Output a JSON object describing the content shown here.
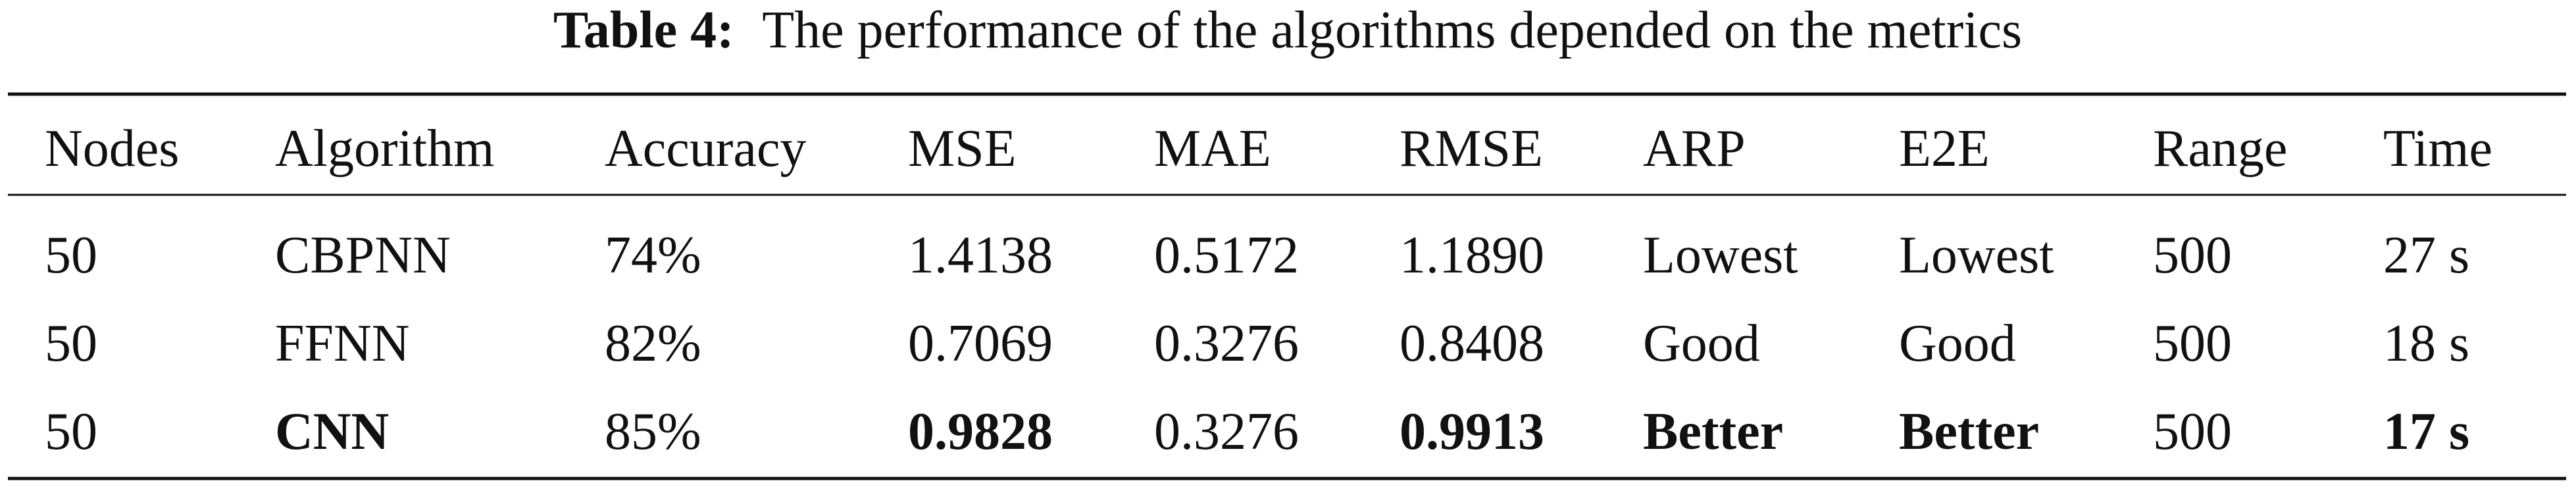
{
  "caption": {
    "label": "Table 4:",
    "text": "The performance of the algorithms depended on the metrics"
  },
  "table": {
    "header": [
      "Nodes",
      "Algorithm",
      "Accuracy",
      "MSE",
      "MAE",
      "RMSE",
      "ARP",
      "E2E",
      "Range",
      "Time"
    ],
    "rows": [
      [
        "50",
        "CBPNN",
        "74%",
        "1.4138",
        "0.5172",
        "1.1890",
        "Lowest",
        "Lowest",
        "500",
        "27 s"
      ],
      [
        "50",
        "FFNN",
        "82%",
        "0.7069",
        "0.3276",
        "0.8408",
        "Good",
        "Good",
        "500",
        "18 s"
      ],
      [
        "50",
        "CNN",
        "85%",
        "0.9828",
        "0.3276",
        "0.9913",
        "Better",
        "Better",
        "500",
        "17 s"
      ]
    ],
    "bold_cells": [
      [
        2,
        1
      ],
      [
        2,
        3
      ],
      [
        2,
        5
      ],
      [
        2,
        6
      ],
      [
        2,
        7
      ],
      [
        2,
        9
      ]
    ]
  }
}
